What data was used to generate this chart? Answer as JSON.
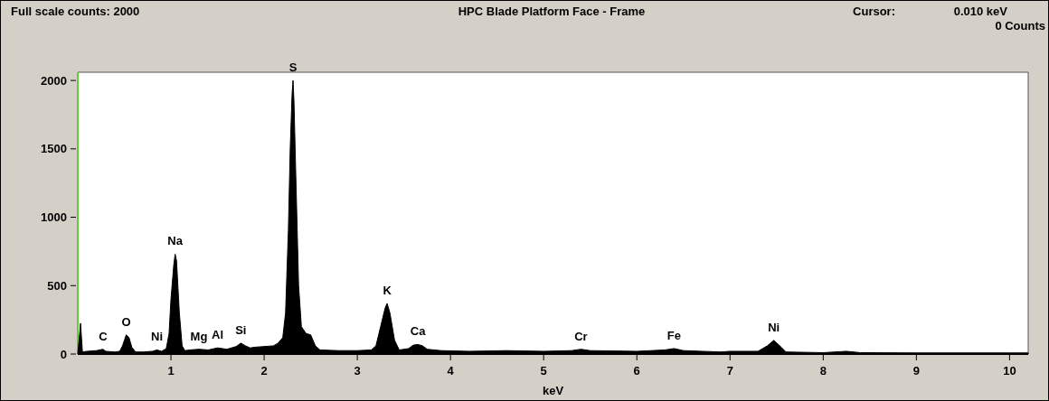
{
  "chart_data": {
    "type": "area",
    "title": "HPC Blade Platform Face - Frame",
    "xlabel": "keV",
    "x": [
      0,
      0.03,
      0.05,
      0.1,
      0.2,
      0.27,
      0.3,
      0.4,
      0.45,
      0.48,
      0.52,
      0.55,
      0.58,
      0.62,
      0.7,
      0.8,
      0.85,
      0.9,
      0.95,
      0.98,
      1.0,
      1.03,
      1.045,
      1.06,
      1.09,
      1.12,
      1.15,
      1.2,
      1.3,
      1.4,
      1.5,
      1.6,
      1.7,
      1.75,
      1.8,
      1.85,
      1.9,
      2.0,
      2.1,
      2.15,
      2.2,
      2.23,
      2.26,
      2.28,
      2.3,
      2.31,
      2.32,
      2.34,
      2.37,
      2.4,
      2.45,
      2.5,
      2.55,
      2.6,
      2.8,
      3.0,
      3.15,
      3.2,
      3.25,
      3.3,
      3.32,
      3.35,
      3.4,
      3.45,
      3.55,
      3.6,
      3.65,
      3.7,
      3.75,
      3.9,
      4.2,
      4.6,
      5.0,
      5.3,
      5.4,
      5.5,
      6.0,
      6.3,
      6.4,
      6.5,
      6.9,
      7.0,
      7.3,
      7.4,
      7.47,
      7.55,
      7.6,
      8.0,
      8.25,
      8.4,
      9.0,
      10.0,
      10.2
    ],
    "series": [
      {
        "color": "#000000",
        "values": [
          0,
          225,
          15,
          20,
          25,
          35,
          20,
          15,
          20,
          60,
          140,
          120,
          50,
          15,
          15,
          20,
          30,
          20,
          40,
          150,
          400,
          650,
          730,
          680,
          300,
          60,
          25,
          30,
          35,
          30,
          45,
          35,
          55,
          80,
          60,
          45,
          50,
          55,
          60,
          80,
          120,
          300,
          900,
          1500,
          1900,
          2000,
          1850,
          1300,
          500,
          200,
          150,
          140,
          60,
          30,
          25,
          25,
          30,
          60,
          200,
          340,
          370,
          300,
          100,
          30,
          40,
          65,
          70,
          60,
          35,
          25,
          20,
          25,
          20,
          25,
          35,
          25,
          20,
          30,
          40,
          25,
          15,
          20,
          20,
          60,
          100,
          50,
          15,
          10,
          20,
          10,
          8,
          8,
          8
        ]
      }
    ],
    "xlim": [
      0,
      10.2
    ],
    "ylim": [
      0,
      2060
    ],
    "xticks": [
      1,
      2,
      3,
      4,
      5,
      6,
      7,
      8,
      9,
      10
    ],
    "yticks": [
      0,
      500,
      1000,
      1500,
      2000
    ],
    "grid": false,
    "annotations": [
      "Full scale counts: 2000",
      "Cursor:",
      "0.010 keV",
      "0 Counts",
      {
        "text": "C",
        "x": 0.27,
        "y": 35
      },
      {
        "text": "O",
        "x": 0.52,
        "y": 140
      },
      {
        "text": "Ni",
        "x": 0.85,
        "y": 30
      },
      {
        "text": "Na",
        "x": 1.045,
        "y": 730
      },
      {
        "text": "Mg",
        "x": 1.3,
        "y": 35
      },
      {
        "text": "Al",
        "x": 1.5,
        "y": 45
      },
      {
        "text": "Si",
        "x": 1.75,
        "y": 80
      },
      {
        "text": "S",
        "x": 2.31,
        "y": 2000
      },
      {
        "text": "K",
        "x": 3.32,
        "y": 370
      },
      {
        "text": "Ca",
        "x": 3.65,
        "y": 70
      },
      {
        "text": "Cr",
        "x": 5.4,
        "y": 35
      },
      {
        "text": "Fe",
        "x": 6.4,
        "y": 40
      },
      {
        "text": "Ni",
        "x": 7.47,
        "y": 100
      }
    ]
  }
}
